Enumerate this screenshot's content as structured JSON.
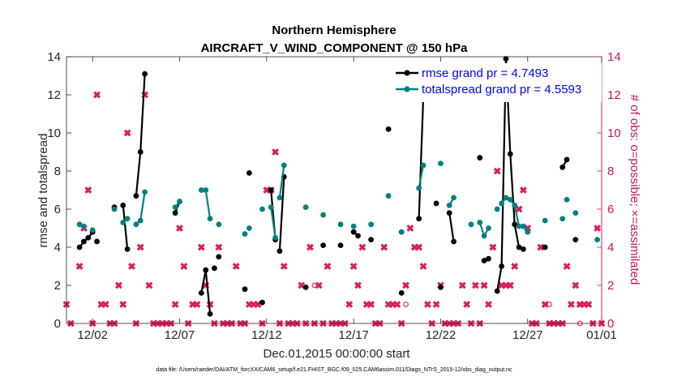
{
  "chart_data": {
    "type": "line",
    "title": "Northern Hemisphere",
    "subtitle": "AIRCRAFT_V_WIND_COMPONENT @ 150 hPa",
    "xlabel": "Dec.01,2015 00:00:00 start",
    "ylabel_left": "rmse and totalspread",
    "ylabel_right": "# of obs: o=possible; ×=assimilated",
    "xlim": [
      0.5,
      31.25
    ],
    "ylim_left": [
      0,
      14
    ],
    "ylim_right": [
      0,
      14
    ],
    "x_ticks": [
      2,
      7,
      12,
      17,
      22,
      27,
      32
    ],
    "x_tick_labels": [
      "12/02",
      "12/07",
      "12/12",
      "12/17",
      "12/22",
      "12/27",
      "01/01"
    ],
    "y_ticks": [
      0,
      2,
      4,
      6,
      8,
      10,
      12,
      14
    ],
    "y_tick_labels": [
      "0",
      "2",
      "4",
      "6",
      "8",
      "10",
      "12",
      "14"
    ],
    "footnote": "data file: /Users/raeder/DAI/ATM_forcXX/CAM6_setup/f.e21.FHIST_BGC.f09_025.CAM6assim.011/Diags_NTrS_2015-12/obs_diag_output.nc",
    "colors": {
      "rmse": "#000000",
      "totalspread": "#008080",
      "obs": "#dc1e5a",
      "axis": "#262626",
      "legend_text": "#0000ff"
    },
    "series": [
      {
        "name": "rmse",
        "legend": "rmse grand pr = 4.7493",
        "color": "#000000",
        "segments": [
          [
            [
              1.25,
              4.0
            ],
            [
              1.5,
              4.3
            ],
            [
              1.75,
              4.5
            ],
            [
              2.0,
              4.8
            ]
          ],
          [
            [
              2.25,
              4.3
            ]
          ],
          [
            [
              3.25,
              6.1
            ]
          ],
          [
            [
              3.75,
              6.2
            ],
            [
              4.0,
              3.9
            ]
          ],
          [
            [
              4.5,
              6.7
            ],
            [
              4.75,
              9.0
            ],
            [
              5.0,
              13.1
            ]
          ],
          [
            [
              6.75,
              5.8
            ],
            [
              7.0,
              6.4
            ]
          ],
          [
            [
              8.25,
              1.6
            ],
            [
              8.5,
              2.8
            ],
            [
              8.75,
              0.5
            ]
          ],
          [
            [
              9.0,
              2.9
            ]
          ],
          [
            [
              9.25,
              3.5
            ]
          ],
          [
            [
              10.75,
              1.8
            ]
          ],
          [
            [
              11.0,
              7.9
            ]
          ],
          [
            [
              11.75,
              1.1
            ]
          ],
          [
            [
              12.25,
              7.0
            ],
            [
              12.5,
              4.4
            ]
          ],
          [
            [
              12.75,
              3.8
            ],
            [
              13.0,
              7.7
            ]
          ],
          [
            [
              14.25,
              1.9
            ]
          ],
          [
            [
              15.25,
              4.1
            ]
          ],
          [
            [
              16.25,
              4.1
            ]
          ],
          [
            [
              17.0,
              4.8
            ],
            [
              17.25,
              4.6
            ]
          ],
          [
            [
              18.0,
              4.4
            ]
          ],
          [
            [
              19.0,
              10.2
            ]
          ],
          [
            [
              19.75,
              1.6
            ]
          ],
          [
            [
              20.75,
              5.5
            ],
            [
              21.0,
              11.8
            ]
          ],
          [
            [
              21.75,
              6.3
            ]
          ],
          [
            [
              22.0,
              1.9
            ]
          ],
          [
            [
              22.5,
              5.8
            ],
            [
              22.75,
              4.3
            ]
          ],
          [
            [
              24.25,
              8.7
            ]
          ],
          [
            [
              24.5,
              3.3
            ],
            [
              24.75,
              3.4
            ]
          ],
          [
            [
              25.25,
              1.7
            ],
            [
              25.5,
              3.0
            ],
            [
              25.75,
              13.9
            ],
            [
              26.0,
              8.9
            ],
            [
              26.25,
              5.2
            ],
            [
              26.5,
              4.0
            ],
            [
              26.75,
              3.9
            ]
          ],
          [
            [
              28.0,
              4.0
            ]
          ],
          [
            [
              29.0,
              8.2
            ],
            [
              29.25,
              8.6
            ]
          ],
          [
            [
              29.75,
              4.4
            ]
          ]
        ]
      },
      {
        "name": "totalspread",
        "legend": "totalspread grand pr = 4.5593",
        "color": "#008080",
        "segments": [
          [
            [
              1.25,
              5.2
            ],
            [
              1.5,
              5.1
            ]
          ],
          [
            [
              2.0,
              4.9
            ]
          ],
          [
            [
              3.25,
              6.0
            ]
          ],
          [
            [
              3.75,
              5.3
            ],
            [
              4.0,
              5.5
            ]
          ],
          [
            [
              4.5,
              5.2
            ],
            [
              4.75,
              5.4
            ],
            [
              5.0,
              6.9
            ]
          ],
          [
            [
              6.75,
              6.1
            ],
            [
              7.0,
              6.4
            ]
          ],
          [
            [
              8.25,
              7.0
            ],
            [
              8.5,
              7.0
            ],
            [
              8.75,
              5.5
            ]
          ],
          [
            [
              9.25,
              5.2
            ]
          ],
          [
            [
              10.75,
              4.7
            ]
          ],
          [
            [
              11.0,
              5.0
            ]
          ],
          [
            [
              11.75,
              6.0
            ]
          ],
          [
            [
              12.25,
              6.1
            ],
            [
              12.5,
              4.5
            ]
          ],
          [
            [
              12.75,
              6.6
            ],
            [
              13.0,
              8.3
            ]
          ],
          [
            [
              14.25,
              6.1
            ]
          ],
          [
            [
              15.25,
              5.7
            ]
          ],
          [
            [
              16.25,
              5.2
            ]
          ],
          [
            [
              17.0,
              5.1
            ]
          ],
          [
            [
              18.0,
              5.2
            ]
          ],
          [
            [
              19.0,
              6.7
            ]
          ],
          [
            [
              19.75,
              4.8
            ]
          ],
          [
            [
              20.75,
              7.1
            ],
            [
              21.0,
              8.3
            ]
          ],
          [
            [
              22.0,
              8.4
            ]
          ],
          [
            [
              22.5,
              6.2
            ],
            [
              22.75,
              6.6
            ]
          ],
          [
            [
              23.75,
              5.2
            ]
          ],
          [
            [
              24.25,
              5.3
            ],
            [
              24.5,
              4.6
            ],
            [
              24.75,
              5.0
            ]
          ],
          [
            [
              25.25,
              6.0
            ]
          ],
          [
            [
              25.5,
              6.3
            ],
            [
              25.75,
              6.6
            ],
            [
              26.0,
              6.5
            ],
            [
              26.25,
              6.2
            ],
            [
              26.5,
              5.1
            ],
            [
              26.75,
              5.1
            ],
            [
              27.0,
              4.8
            ]
          ],
          [
            [
              28.0,
              5.4
            ]
          ],
          [
            [
              29.0,
              5.5
            ]
          ],
          [
            [
              29.25,
              6.5
            ]
          ],
          [
            [
              29.75,
              5.8
            ]
          ],
          [
            [
              31.0,
              4.4
            ]
          ]
        ]
      }
    ],
    "obs_assimilated": [
      [
        0.5,
        1.0
      ],
      [
        0.75,
        0.0
      ],
      [
        1.25,
        3.0
      ],
      [
        1.5,
        5.0
      ],
      [
        1.75,
        7.0
      ],
      [
        2.0,
        0.0
      ],
      [
        2.25,
        12.0
      ],
      [
        2.5,
        1.0
      ],
      [
        2.75,
        1.0
      ],
      [
        3.0,
        0.0
      ],
      [
        3.25,
        0.0
      ],
      [
        3.5,
        2.0
      ],
      [
        3.75,
        1.0
      ],
      [
        4.0,
        10.0
      ],
      [
        4.25,
        3.0
      ],
      [
        4.5,
        0.0
      ],
      [
        4.75,
        4.0
      ],
      [
        5.0,
        12.0
      ],
      [
        5.25,
        2.0
      ],
      [
        5.5,
        0.0
      ],
      [
        5.75,
        0.0
      ],
      [
        6.0,
        0.0
      ],
      [
        6.25,
        0.0
      ],
      [
        6.5,
        0.0
      ],
      [
        6.75,
        1.0
      ],
      [
        7.0,
        5.0
      ],
      [
        7.25,
        3.0
      ],
      [
        7.5,
        0.0
      ],
      [
        7.75,
        1.0
      ],
      [
        8.0,
        1.0
      ],
      [
        8.25,
        4.0
      ],
      [
        8.5,
        2.0
      ],
      [
        8.75,
        1.0
      ],
      [
        9.0,
        0.0
      ],
      [
        9.25,
        4.0
      ],
      [
        9.5,
        0.0
      ],
      [
        9.75,
        0.0
      ],
      [
        10.0,
        0.0
      ],
      [
        10.25,
        3.0
      ],
      [
        10.5,
        0.0
      ],
      [
        10.75,
        0.0
      ],
      [
        11.0,
        1.0
      ],
      [
        11.25,
        1.0
      ],
      [
        11.5,
        1.0
      ],
      [
        11.75,
        0.0
      ],
      [
        12.0,
        7.0
      ],
      [
        12.25,
        7.0
      ],
      [
        12.5,
        9.0
      ],
      [
        12.75,
        0.0
      ],
      [
        13.0,
        3.0
      ],
      [
        13.25,
        0.0
      ],
      [
        13.5,
        0.0
      ],
      [
        13.75,
        0.0
      ],
      [
        14.0,
        2.0
      ],
      [
        14.25,
        0.0
      ],
      [
        14.5,
        4.0
      ],
      [
        14.75,
        0.0
      ],
      [
        15.0,
        2.0
      ],
      [
        15.25,
        0.0
      ],
      [
        15.5,
        3.0
      ],
      [
        15.75,
        0.0
      ],
      [
        16.0,
        0.0
      ],
      [
        16.25,
        0.0
      ],
      [
        16.5,
        0.0
      ],
      [
        16.75,
        1.0
      ],
      [
        17.0,
        3.0
      ],
      [
        17.25,
        2.0
      ],
      [
        17.5,
        4.0
      ],
      [
        17.75,
        1.0
      ],
      [
        18.0,
        1.0
      ],
      [
        18.25,
        0.0
      ],
      [
        18.5,
        0.0
      ],
      [
        18.75,
        4.0
      ],
      [
        19.0,
        1.0
      ],
      [
        19.25,
        1.0
      ],
      [
        19.5,
        1.0
      ],
      [
        19.75,
        0.0
      ],
      [
        20.0,
        2.0
      ],
      [
        20.25,
        5.0
      ],
      [
        20.5,
        4.0
      ],
      [
        20.75,
        4.0
      ],
      [
        21.0,
        3.0
      ],
      [
        21.25,
        1.0
      ],
      [
        21.5,
        0.0
      ],
      [
        21.75,
        1.0
      ],
      [
        22.0,
        2.0
      ],
      [
        22.25,
        0.0
      ],
      [
        22.5,
        0.0
      ],
      [
        22.75,
        0.0
      ],
      [
        23.0,
        0.0
      ],
      [
        23.25,
        2.0
      ],
      [
        23.5,
        1.0
      ],
      [
        23.75,
        0.0
      ],
      [
        24.0,
        2.0
      ],
      [
        24.25,
        0.0
      ],
      [
        24.5,
        2.0
      ],
      [
        24.75,
        1.0
      ],
      [
        25.0,
        4.0
      ],
      [
        25.25,
        8.0
      ],
      [
        25.5,
        2.0
      ],
      [
        25.75,
        2.0
      ],
      [
        26.0,
        2.0
      ],
      [
        26.25,
        3.0
      ],
      [
        26.5,
        6.0
      ],
      [
        26.75,
        7.0
      ],
      [
        27.0,
        5.0
      ],
      [
        27.25,
        0.0
      ],
      [
        27.5,
        0.0
      ],
      [
        27.75,
        4.0
      ],
      [
        28.0,
        1.0
      ],
      [
        28.25,
        0.0
      ],
      [
        28.5,
        0.0
      ],
      [
        28.75,
        0.0
      ],
      [
        29.0,
        0.0
      ],
      [
        29.25,
        3.0
      ],
      [
        29.5,
        1.0
      ],
      [
        29.75,
        2.0
      ],
      [
        30.0,
        1.0
      ],
      [
        30.25,
        1.0
      ],
      [
        30.5,
        1.0
      ],
      [
        30.75,
        0.0
      ],
      [
        31.0,
        5.0
      ],
      [
        31.25,
        0.0
      ]
    ],
    "obs_possible": [
      [
        14.75,
        2.0
      ],
      [
        20.0,
        1.0
      ],
      [
        28.25,
        1.0
      ],
      [
        30.0,
        0.0
      ]
    ]
  }
}
